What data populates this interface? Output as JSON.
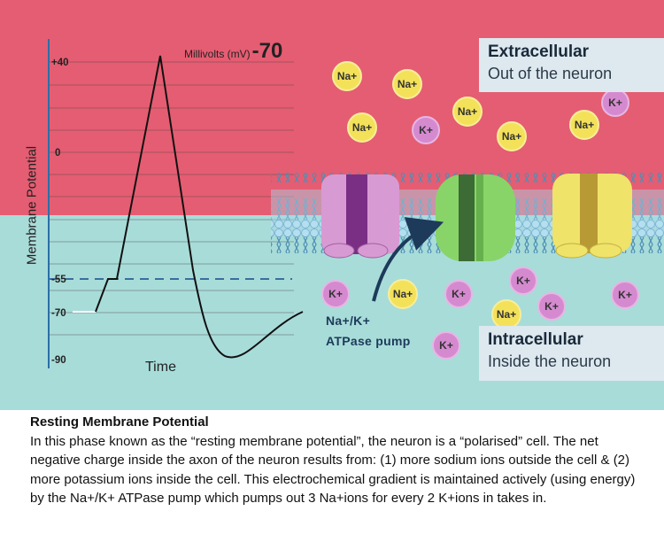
{
  "graph": {
    "y_axis_label": "Membrane Potential",
    "x_axis_label": "Time",
    "unit_label": "Millivolts (mV)",
    "current_value": "-70",
    "ticks": [
      "+40",
      "0",
      "-55",
      "-70",
      "-90"
    ]
  },
  "extracellular": {
    "title": "Extracellular",
    "subtitle": "Out of the neuron"
  },
  "intracellular": {
    "title": "Intracellular",
    "subtitle": "Inside the neuron"
  },
  "pump_label": {
    "line1": "Na+/K+",
    "line2": "ATPase pump"
  },
  "ions": {
    "na": "Na+",
    "k": "K+"
  },
  "caption": {
    "title": "Resting Membrane Potential",
    "body": "In this phase known as the “resting membrane potential”, the neuron is a “polarised” cell. The net negative charge inside the axon of the neuron results from: (1) more sodium ions outside the cell & (2) more potassium ions inside the cell. This electrochemical gradient is maintained actively (using energy) by the Na+/K+ ATPase pump which pumps out 3 Na+ions for every 2 K+ions in takes in."
  },
  "colors": {
    "extracellular_bg": "#e55d72",
    "intracellular_bg": "#a8dcd9",
    "sodium": "#f3e15a",
    "potassium": "#d58ad0",
    "channel_purple": "#d89ad2",
    "channel_green": "#88d468",
    "channel_yellow": "#efe36a",
    "label_bg": "#dde8ef"
  }
}
